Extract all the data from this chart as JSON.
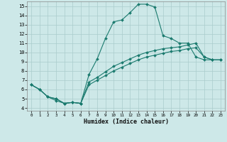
{
  "xlabel": "Humidex (Indice chaleur)",
  "bg_color": "#cde8e8",
  "line_color": "#1a7a6e",
  "grid_color": "#aacccc",
  "xlim": [
    0,
    23
  ],
  "ylim": [
    4,
    15
  ],
  "xticks": [
    0,
    1,
    2,
    3,
    4,
    5,
    6,
    7,
    8,
    9,
    10,
    11,
    12,
    13,
    14,
    15,
    16,
    17,
    18,
    19,
    20,
    21,
    22,
    23
  ],
  "yticks": [
    4,
    5,
    6,
    7,
    8,
    9,
    10,
    11,
    12,
    13,
    14,
    15
  ],
  "line1_x": [
    0,
    1,
    2,
    3,
    4,
    5,
    6,
    7,
    8,
    9,
    10,
    11,
    12,
    13,
    14,
    15,
    16,
    17,
    18,
    19,
    20,
    21,
    22
  ],
  "line1_y": [
    6.5,
    6.0,
    5.2,
    4.8,
    4.5,
    4.6,
    4.5,
    7.6,
    9.3,
    11.5,
    13.3,
    13.5,
    14.3,
    15.2,
    15.2,
    14.9,
    11.8,
    11.5,
    11.0,
    11.0,
    9.5,
    9.2,
    9.2
  ],
  "line2_x": [
    0,
    1,
    2,
    3,
    4,
    5,
    6,
    7,
    8,
    9,
    10,
    11,
    12,
    13,
    14,
    15,
    16,
    17,
    18,
    19,
    20,
    21,
    22,
    23
  ],
  "line2_y": [
    6.5,
    6.0,
    5.2,
    5.0,
    4.5,
    4.6,
    4.5,
    6.8,
    7.3,
    7.9,
    8.5,
    8.9,
    9.3,
    9.7,
    10.0,
    10.2,
    10.4,
    10.5,
    10.6,
    10.8,
    11.0,
    9.5,
    9.2,
    9.2
  ],
  "line3_x": [
    0,
    1,
    2,
    3,
    4,
    5,
    6,
    7,
    8,
    9,
    10,
    11,
    12,
    13,
    14,
    15,
    16,
    17,
    18,
    19,
    20,
    21,
    22,
    23
  ],
  "line3_y": [
    6.5,
    6.0,
    5.2,
    5.0,
    4.5,
    4.6,
    4.5,
    6.5,
    7.0,
    7.5,
    8.0,
    8.4,
    8.8,
    9.2,
    9.5,
    9.7,
    9.9,
    10.1,
    10.2,
    10.4,
    10.5,
    9.5,
    9.2,
    9.2
  ]
}
